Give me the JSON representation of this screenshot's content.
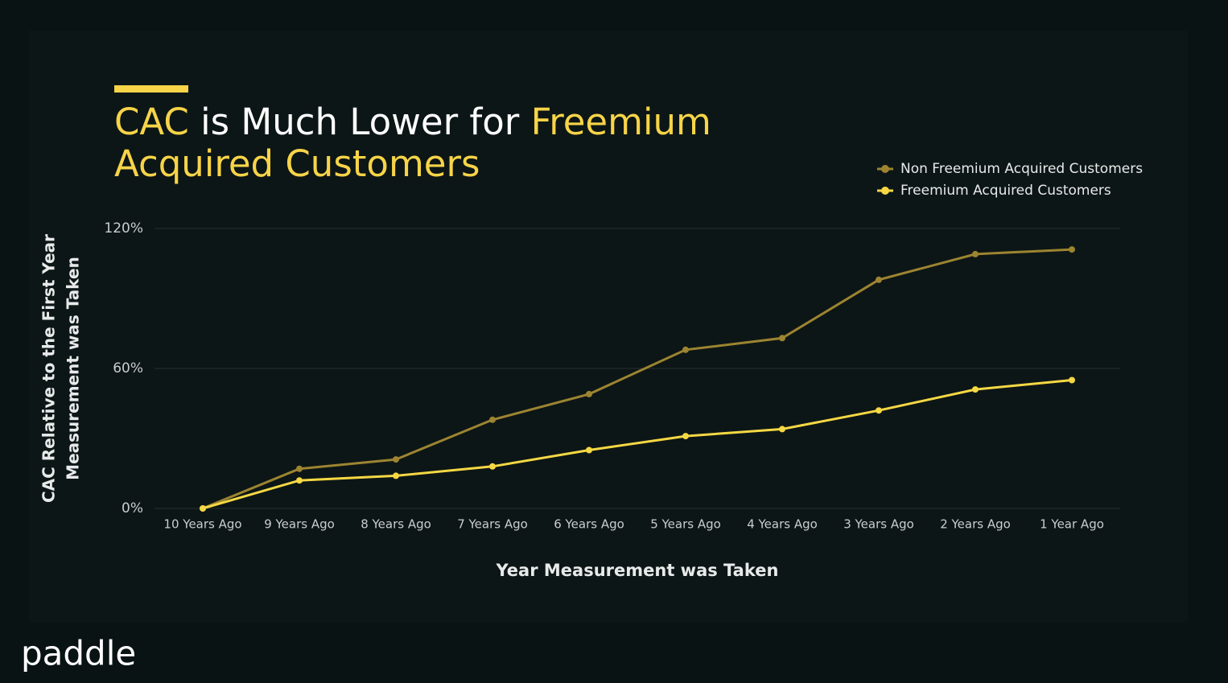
{
  "chart_data": {
    "type": "line",
    "title_parts": [
      "CAC",
      "is Much Lower for",
      "Freemium Acquired Customers"
    ],
    "title_colors": [
      "#f7d448",
      "#ffffff",
      "#f7d448"
    ],
    "categories": [
      "10 Years Ago",
      "9 Years Ago",
      "8 Years Ago",
      "7 Years Ago",
      "6 Years Ago",
      "5 Years Ago",
      "4 Years Ago",
      "3 Years Ago",
      "2 Years Ago",
      "1 Year Ago"
    ],
    "series": [
      {
        "name": "Non Freemium Acquired Customers",
        "color": "#9c8431",
        "values": [
          0,
          17,
          21,
          38,
          49,
          68,
          73,
          98,
          109,
          111
        ]
      },
      {
        "name": "Freemium Acquired Customers",
        "color": "#f5d844",
        "values": [
          0,
          12,
          14,
          18,
          25,
          31,
          34,
          42,
          51,
          55
        ]
      }
    ],
    "ylim": [
      0,
      120
    ],
    "yticks": [
      {
        "value": 0,
        "label": "0%"
      },
      {
        "value": 60,
        "label": "60%"
      },
      {
        "value": 120,
        "label": "120%"
      }
    ],
    "grid": true,
    "xlabel": "Year Measurement was Taken",
    "ylabel": [
      "CAC Relative to the First Year",
      "Measurement was Taken"
    ],
    "legend": "top-right",
    "logo": "paddle"
  }
}
